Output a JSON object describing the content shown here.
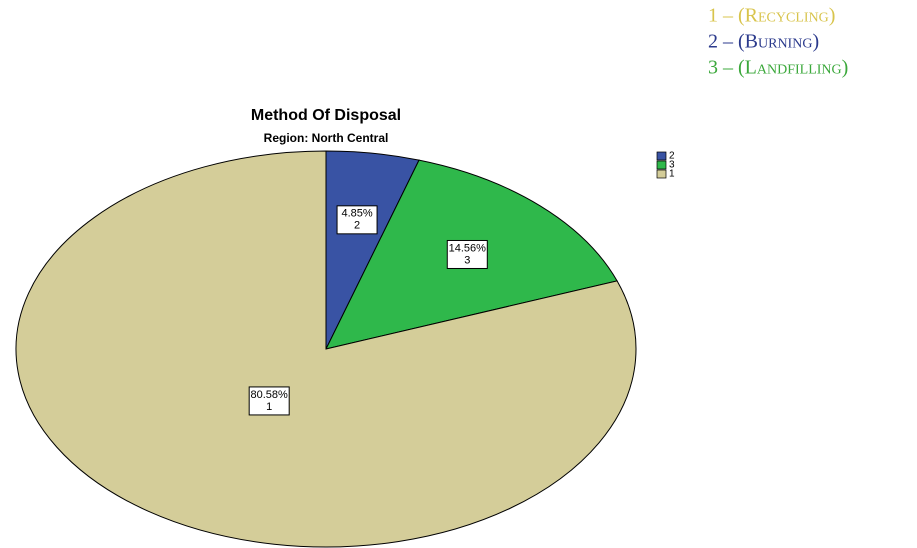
{
  "chart_data": {
    "type": "pie",
    "title": "Method Of Disposal",
    "subtitle": "Region: North Central",
    "categories": [
      "2",
      "3",
      "1"
    ],
    "values": [
      4.85,
      14.56,
      80.58
    ],
    "value_labels": [
      "4.85%",
      "14.56%",
      "80.58%"
    ],
    "colors": [
      "#3953a4",
      "#2fb84b",
      "#d4cd99"
    ],
    "legend": "top-right",
    "annotations": [
      {
        "text": "1 – (Recycling)",
        "color": "#d8c44c"
      },
      {
        "text": "2 – (Burning)",
        "color": "#2b3a8c"
      },
      {
        "text": "3 – (Landfilling)",
        "color": "#3ba83b"
      }
    ]
  }
}
